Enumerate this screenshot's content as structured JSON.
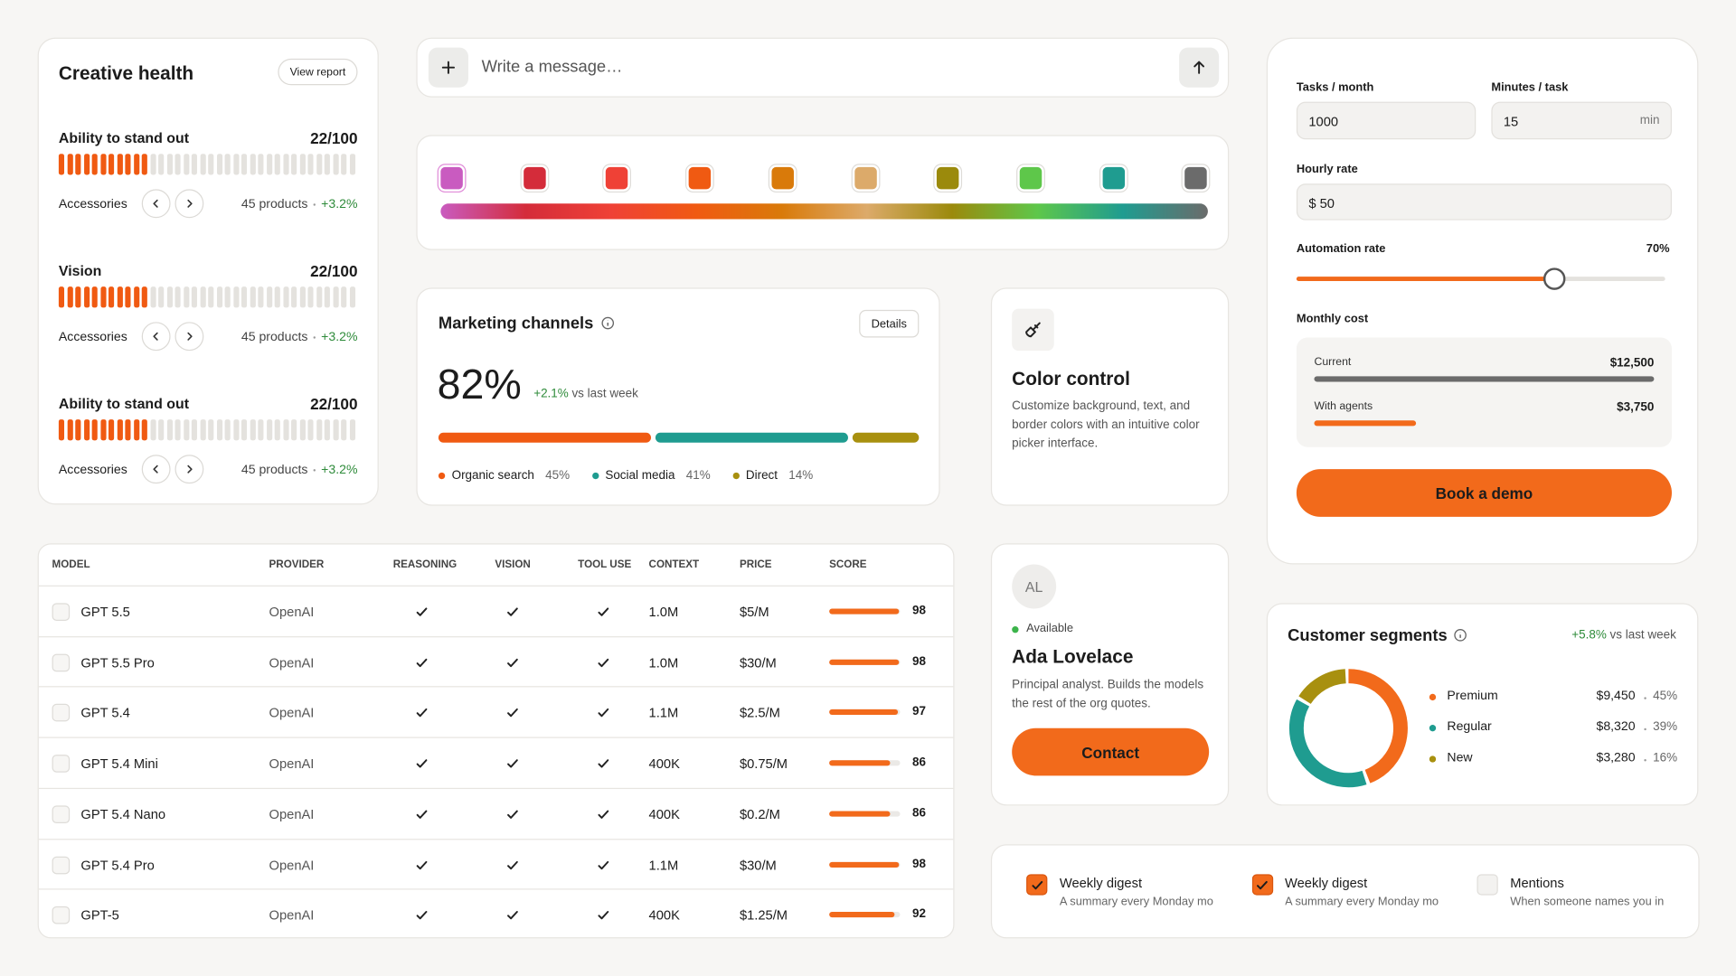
{
  "creative_health": {
    "title": "Creative health",
    "button": "View report",
    "items": [
      {
        "label": "Ability to stand out",
        "score": "22/100",
        "category": "Accessories",
        "count": "45 products",
        "change": "+3.2%"
      },
      {
        "label": "Vision",
        "score": "22/100",
        "category": "Accessories",
        "count": "45 products",
        "change": "+3.2%"
      },
      {
        "label": "Ability to stand out",
        "score": "22/100",
        "category": "Accessories",
        "count": "45 products",
        "change": "+3.2%"
      }
    ]
  },
  "composer": {
    "placeholder": "Write a message…"
  },
  "palette": {
    "swatches": [
      "#c95bc0",
      "#d42c3a",
      "#ef4136",
      "#f05a12",
      "#d97a0a",
      "#dcaa6a",
      "#9b8a0c",
      "#5ec74a",
      "#1f9c90",
      "#6b6b6b"
    ]
  },
  "marketing": {
    "title": "Marketing channels",
    "button": "Details",
    "value": "82%",
    "change": "+2.1%",
    "change_suffix": "vs last week",
    "channels": [
      {
        "name": "Organic search",
        "value": 45,
        "label": "45%",
        "color": "#f05a12"
      },
      {
        "name": "Social media",
        "value": 41,
        "label": "41%",
        "color": "#1f9c90"
      },
      {
        "name": "Direct",
        "value": 14,
        "label": "14%",
        "color": "#a8900f"
      }
    ]
  },
  "color_control": {
    "title": "Color control",
    "description": "Customize background, text, and border colors with an intuitive color picker interface."
  },
  "calculator": {
    "tasks_label": "Tasks / month",
    "tasks_value": "1000",
    "minutes_label": "Minutes / task",
    "minutes_value": "15",
    "minutes_unit": "min",
    "rate_label": "Hourly rate",
    "rate_value": "$ 50",
    "automation_label": "Automation rate",
    "automation_value": 70,
    "automation_text": "70%",
    "cost_label": "Monthly cost",
    "costs": [
      {
        "label": "Current",
        "value": 12500,
        "text": "$12,500",
        "color": "#6b6b6b"
      },
      {
        "label": "With agents",
        "value": 3750,
        "text": "$3,750",
        "color": "#f26a1b"
      }
    ],
    "button": "Book a demo"
  },
  "table": {
    "columns": [
      "MODEL",
      "PROVIDER",
      "REASONING",
      "VISION",
      "TOOL USE",
      "CONTEXT",
      "PRICE",
      "SCORE"
    ],
    "rows": [
      {
        "model": "GPT 5.5",
        "provider": "OpenAI",
        "reasoning": true,
        "vision": true,
        "tool_use": true,
        "context": "1.0M",
        "price": "$5/M",
        "score": 98
      },
      {
        "model": "GPT 5.5 Pro",
        "provider": "OpenAI",
        "reasoning": true,
        "vision": true,
        "tool_use": true,
        "context": "1.0M",
        "price": "$30/M",
        "score": 98
      },
      {
        "model": "GPT 5.4",
        "provider": "OpenAI",
        "reasoning": true,
        "vision": true,
        "tool_use": true,
        "context": "1.1M",
        "price": "$2.5/M",
        "score": 97
      },
      {
        "model": "GPT 5.4 Mini",
        "provider": "OpenAI",
        "reasoning": true,
        "vision": true,
        "tool_use": true,
        "context": "400K",
        "price": "$0.75/M",
        "score": 86
      },
      {
        "model": "GPT 5.4 Nano",
        "provider": "OpenAI",
        "reasoning": true,
        "vision": true,
        "tool_use": true,
        "context": "400K",
        "price": "$0.2/M",
        "score": 86
      },
      {
        "model": "GPT 5.4 Pro",
        "provider": "OpenAI",
        "reasoning": true,
        "vision": true,
        "tool_use": true,
        "context": "1.1M",
        "price": "$30/M",
        "score": 98
      },
      {
        "model": "GPT-5",
        "provider": "OpenAI",
        "reasoning": true,
        "vision": true,
        "tool_use": true,
        "context": "400K",
        "price": "$1.25/M",
        "score": 92
      }
    ]
  },
  "profile": {
    "initials": "AL",
    "status": "Available",
    "name": "Ada Lovelace",
    "bio": "Principal analyst. Builds the models the rest of the org quotes.",
    "button": "Contact"
  },
  "segments": {
    "title": "Customer segments",
    "change": "+5.8%",
    "change_suffix": "vs last week",
    "items": [
      {
        "name": "Premium",
        "amount": "$9,450",
        "share": 45,
        "share_label": "45%",
        "color": "#f26a1b"
      },
      {
        "name": "Regular",
        "amount": "$8,320",
        "share": 39,
        "share_label": "39%",
        "color": "#1f9c90"
      },
      {
        "name": "New",
        "amount": "$3,280",
        "share": 16,
        "share_label": "16%",
        "color": "#a8900f"
      }
    ]
  },
  "notifications": [
    {
      "title": "Weekly digest",
      "description": "A summary every Monday mo",
      "checked": true
    },
    {
      "title": "Weekly digest",
      "description": "A summary every Monday mo",
      "checked": true
    },
    {
      "title": "Mentions",
      "description": "When someone names you in",
      "checked": false
    }
  ]
}
